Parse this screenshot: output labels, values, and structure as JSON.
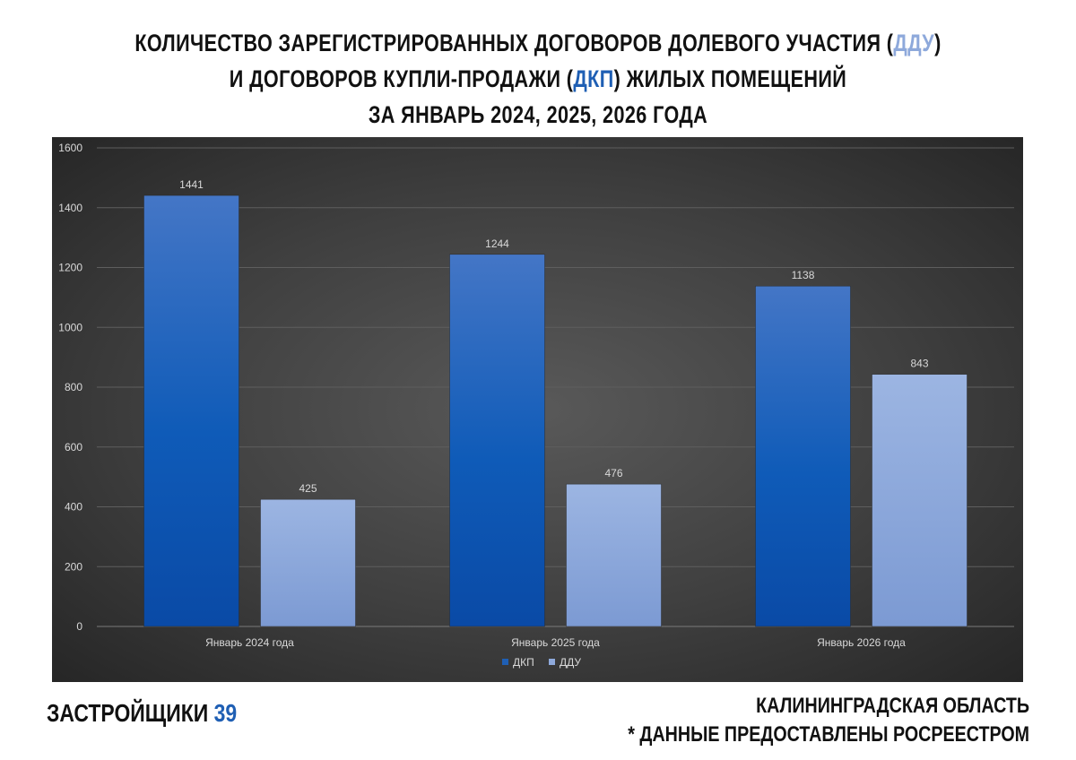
{
  "header": {
    "line1_a": "КОЛИЧЕСТВО ЗАРЕГИСТРИРОВАННЫХ ДОГОВОРОВ ДОЛЕВОГО УЧАСТИЯ (",
    "line1_ddu": "ДДУ",
    "line1_b": ")",
    "line2_a": "И ДОГОВОРОВ КУПЛИ-ПРОДАЖИ (",
    "line2_dkp": "ДКП",
    "line2_b": ") ЖИЛЫХ ПОМЕЩЕНИЙ",
    "line3": "ЗА ЯНВАРЬ 2024, 2025, 2026 ГОДА"
  },
  "footer": {
    "brand_text": "ЗАСТРОЙЩИКИ",
    "brand_number": "39",
    "region": "КАЛИНИНГРАДСКАЯ ОБЛАСТЬ",
    "source": "* ДАННЫЕ ПРЕДОСТАВЛЕНЫ РОСРЕЕСТРОМ"
  },
  "colors": {
    "accent_ddu": "#8ea9db",
    "accent_dkp": "#1f5fb4",
    "series_dkp": "#1f5fb4",
    "series_ddu": "#8ea9db"
  },
  "chart_data": {
    "type": "bar",
    "categories": [
      "Январь 2024 года",
      "Январь 2025 года",
      "Январь 2026 года"
    ],
    "series": [
      {
        "name": "ДКП",
        "values": [
          1441,
          1244,
          1138
        ]
      },
      {
        "name": "ДДУ",
        "values": [
          425,
          476,
          843
        ]
      }
    ],
    "ylim": [
      0,
      1600
    ],
    "yticks": [
      0,
      200,
      400,
      600,
      800,
      1000,
      1200,
      1400,
      1600
    ],
    "grid": true,
    "legend": "bottom-center",
    "data_labels": true
  }
}
